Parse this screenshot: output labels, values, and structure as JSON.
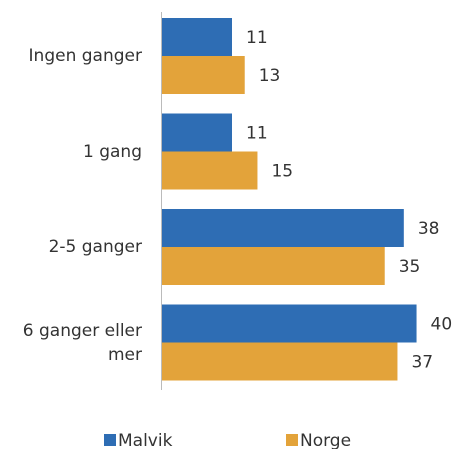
{
  "chart_data": {
    "type": "barh",
    "categories": [
      "Ingen ganger",
      "1 gang",
      "2-5 ganger",
      "6 ganger eller mer"
    ],
    "series": [
      {
        "name": "Malvik",
        "color": "#2e6db4",
        "values": [
          11,
          11,
          38,
          40
        ]
      },
      {
        "name": "Norge",
        "color": "#e3a33a",
        "values": [
          13,
          15,
          35,
          37
        ]
      }
    ],
    "legend": "bottom"
  }
}
